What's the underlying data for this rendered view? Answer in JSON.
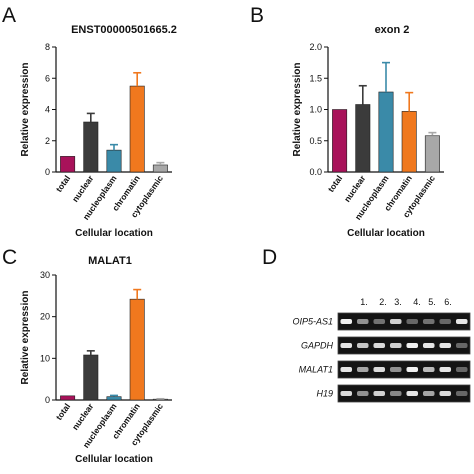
{
  "colors": {
    "total": "#a8125a",
    "nuclear": "#3b3b3b",
    "nucleoplasm": "#3a8aa8",
    "chromatin": "#f0781e",
    "cytoplasmic": "#a8a8a8"
  },
  "panels": {
    "A": {
      "letter": "A"
    },
    "B": {
      "letter": "B"
    },
    "C": {
      "letter": "C"
    },
    "D": {
      "letter": "D"
    }
  },
  "chart_data": [
    {
      "panel": "A",
      "type": "bar",
      "title": "ENST00000501665.2",
      "xlabel": "Cellular location",
      "ylabel": "Relative expression",
      "categories": [
        "total",
        "nuclear",
        "nucleoplasm",
        "chromatin",
        "cytoplasmic"
      ],
      "values": [
        1.0,
        3.2,
        1.4,
        5.5,
        0.45
      ],
      "errors": [
        0.0,
        0.55,
        0.35,
        0.85,
        0.15
      ],
      "ylim": [
        0,
        8
      ],
      "yticks": [
        "0",
        "2",
        "4",
        "6",
        "8"
      ],
      "ytick_values": [
        0,
        2,
        4,
        6,
        8
      ]
    },
    {
      "panel": "B",
      "type": "bar",
      "title": "exon 2",
      "xlabel": "Cellular location",
      "ylabel": "Relative expression",
      "categories": [
        "total",
        "nuclear",
        "nucleoplasm",
        "chromatin",
        "cytoplasmic"
      ],
      "values": [
        1.0,
        1.08,
        1.28,
        0.97,
        0.58
      ],
      "errors": [
        0.0,
        0.3,
        0.47,
        0.3,
        0.05
      ],
      "ylim": [
        0,
        2.0
      ],
      "yticks": [
        "0.0",
        "0.5",
        "1.0",
        "1.5",
        "2.0"
      ],
      "ytick_values": [
        0,
        0.5,
        1.0,
        1.5,
        2.0
      ]
    },
    {
      "panel": "C",
      "type": "bar",
      "title": "MALAT1",
      "xlabel": "Cellular location",
      "ylabel": "Relative expression",
      "categories": [
        "total",
        "nuclear",
        "nucleoplasm",
        "chromatin",
        "cytoplasmic"
      ],
      "values": [
        1.0,
        10.8,
        0.8,
        24.2,
        0.2
      ],
      "errors": [
        0.0,
        1.0,
        0.3,
        2.3,
        0.1
      ],
      "ylim": [
        0,
        30
      ],
      "yticks": [
        "0",
        "10",
        "20",
        "30"
      ],
      "ytick_values": [
        0,
        10,
        20,
        30
      ]
    }
  ],
  "gel": {
    "lanes": [
      "1.",
      "2.",
      "3.",
      "4.",
      "5.",
      "6."
    ],
    "rows": [
      {
        "label": "OIP5-AS1",
        "bands": [
          0.95,
          0.5,
          0.35,
          0.8,
          0.3,
          0.35,
          0.3,
          0.9
        ]
      },
      {
        "label": "GAPDH",
        "bands": [
          0.9,
          0.75,
          0.85,
          0.8,
          0.95,
          0.9,
          0.9,
          0.3
        ]
      },
      {
        "label": "MALAT1",
        "bands": [
          0.9,
          0.6,
          0.85,
          0.5,
          0.95,
          0.7,
          0.9,
          0.3
        ]
      },
      {
        "label": "H19",
        "bands": [
          0.85,
          0.5,
          0.8,
          0.45,
          0.9,
          0.6,
          0.85,
          0.3
        ]
      }
    ]
  }
}
